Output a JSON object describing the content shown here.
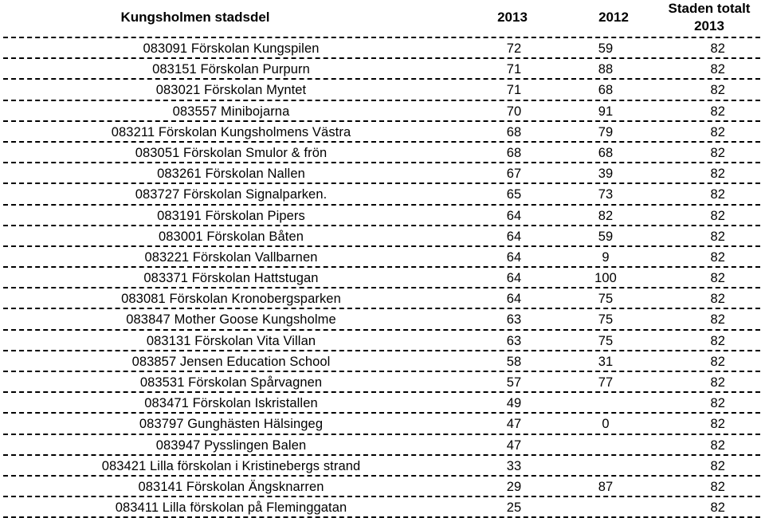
{
  "header": {
    "name": "Kungsholmen stadsdel",
    "y2013": "2013",
    "y2012": "2012",
    "total_line1": "Staden totalt",
    "total_line2": "2013"
  },
  "rows": [
    {
      "name": "083091 Förskolan Kungspilen",
      "y2013": "72",
      "y2012": "59",
      "total": "82"
    },
    {
      "name": "083151 Förskolan Purpurn",
      "y2013": "71",
      "y2012": "88",
      "total": "82"
    },
    {
      "name": "083021 Förskolan Myntet",
      "y2013": "71",
      "y2012": "68",
      "total": "82"
    },
    {
      "name": "083557 Minibojarna",
      "y2013": "70",
      "y2012": "91",
      "total": "82"
    },
    {
      "name": "083211 Förskolan Kungsholmens Västra",
      "y2013": "68",
      "y2012": "79",
      "total": "82"
    },
    {
      "name": "083051 Förskolan Smulor & frön",
      "y2013": "68",
      "y2012": "68",
      "total": "82"
    },
    {
      "name": "083261 Förskolan Nallen",
      "y2013": "67",
      "y2012": "39",
      "total": "82"
    },
    {
      "name": "083727 Förskolan Signalparken.",
      "y2013": "65",
      "y2012": "73",
      "total": "82"
    },
    {
      "name": "083191 Förskolan Pipers",
      "y2013": "64",
      "y2012": "82",
      "total": "82"
    },
    {
      "name": "083001 Förskolan Båten",
      "y2013": "64",
      "y2012": "59",
      "total": "82"
    },
    {
      "name": "083221 Förskolan Vallbarnen",
      "y2013": "64",
      "y2012": "9",
      "total": "82"
    },
    {
      "name": "083371 Förskolan Hattstugan",
      "y2013": "64",
      "y2012": "100",
      "total": "82"
    },
    {
      "name": "083081 Förskolan Kronobergsparken",
      "y2013": "64",
      "y2012": "75",
      "total": "82"
    },
    {
      "name": "083847 Mother Goose Kungsholme",
      "y2013": "63",
      "y2012": "75",
      "total": "82"
    },
    {
      "name": "083131 Förskolan Vita Villan",
      "y2013": "63",
      "y2012": "75",
      "total": "82"
    },
    {
      "name": "083857 Jensen Education School",
      "y2013": "58",
      "y2012": "31",
      "total": "82"
    },
    {
      "name": "083531 Förskolan Spårvagnen",
      "y2013": "57",
      "y2012": "77",
      "total": "82"
    },
    {
      "name": "083471 Förskolan Iskristallen",
      "y2013": "49",
      "y2012": "",
      "total": "82"
    },
    {
      "name": "083797 Gunghästen Hälsingeg",
      "y2013": "47",
      "y2012": "0",
      "total": "82"
    },
    {
      "name": "083947 Pysslingen Balen",
      "y2013": "47",
      "y2012": "",
      "total": "82"
    },
    {
      "name": "083421 Lilla förskolan i Kristinebergs strand",
      "y2013": "33",
      "y2012": "",
      "total": "82"
    },
    {
      "name": "083141 Förskolan Ängsknarren",
      "y2013": "29",
      "y2012": "87",
      "total": "82"
    },
    {
      "name": "083411 Lilla förskolan på Fleminggatan",
      "y2013": "25",
      "y2012": "",
      "total": "82"
    }
  ]
}
